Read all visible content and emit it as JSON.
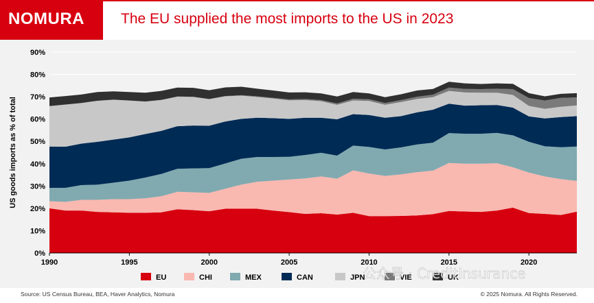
{
  "header": {
    "logo": "NOMURA",
    "title": "The EU supplied the most imports to the US in 2023"
  },
  "footer": {
    "source": "Source: US Census Bureau, BEA, Haver Analytics, Nomura",
    "copyright": "© 2025 Nomura. All Rights Reserved."
  },
  "watermark": "公众号 · CreditInsurance",
  "colors": {
    "brand": "#d7000f",
    "EU": "#d7000f",
    "CHI": "#f9b8b0",
    "MEX": "#80aab0",
    "CAN": "#002b55",
    "JPN": "#c8c8c8",
    "VIE": "#7a7a7a",
    "UK": "#303030"
  },
  "chart_data": {
    "type": "area",
    "stacked": true,
    "ylabel": "US goods imports as % of total",
    "xlabel": "",
    "xlim": [
      1990,
      2023
    ],
    "ylim": [
      0,
      90
    ],
    "yticks": [
      "0%",
      "10%",
      "20%",
      "30%",
      "40%",
      "50%",
      "60%",
      "70%",
      "80%",
      "90%"
    ],
    "xticks": [
      "1990",
      "1995",
      "2000",
      "2005",
      "2010",
      "2015",
      "2020"
    ],
    "grid": "horizontal",
    "legend": "bottom",
    "x": [
      1990,
      1991,
      1992,
      1993,
      1994,
      1995,
      1996,
      1997,
      1998,
      1999,
      2000,
      2001,
      2002,
      2003,
      2004,
      2005,
      2006,
      2007,
      2008,
      2009,
      2010,
      2011,
      2012,
      2013,
      2014,
      2015,
      2016,
      2017,
      2018,
      2019,
      2020,
      2021,
      2022,
      2023
    ],
    "series": [
      {
        "name": "EU",
        "values": [
          20.0,
          19.0,
          19.0,
          18.4,
          18.2,
          18.0,
          18.0,
          18.2,
          19.6,
          19.2,
          18.7,
          19.8,
          19.8,
          19.8,
          19.0,
          18.3,
          17.5,
          17.8,
          17.2,
          18.0,
          16.5,
          16.5,
          16.6,
          16.8,
          17.4,
          18.8,
          18.6,
          18.4,
          19.0,
          20.3,
          17.9,
          17.5,
          17.0,
          18.5
        ]
      },
      {
        "name": "CHI",
        "values": [
          3.2,
          3.9,
          4.8,
          5.4,
          5.9,
          6.1,
          6.5,
          7.2,
          7.8,
          8.0,
          8.2,
          9.0,
          10.8,
          12.1,
          13.4,
          14.6,
          15.9,
          16.5,
          16.1,
          19.0,
          19.1,
          18.0,
          18.6,
          19.4,
          19.5,
          21.5,
          21.4,
          21.6,
          21.2,
          18.1,
          18.1,
          16.8,
          16.1,
          13.8
        ]
      },
      {
        "name": "MEX",
        "values": [
          6.0,
          6.3,
          6.6,
          6.8,
          7.4,
          8.3,
          9.3,
          10.0,
          10.3,
          10.7,
          11.1,
          11.3,
          11.6,
          11.1,
          10.6,
          10.2,
          10.5,
          10.6,
          10.3,
          11.1,
          11.9,
          11.9,
          12.1,
          12.4,
          12.5,
          13.4,
          13.4,
          13.4,
          13.6,
          14.3,
          13.8,
          13.5,
          14.3,
          15.4
        ]
      },
      {
        "name": "CAN",
        "values": [
          18.5,
          18.4,
          18.6,
          19.2,
          19.3,
          19.4,
          19.5,
          19.3,
          19.1,
          19.2,
          19.0,
          18.8,
          17.9,
          17.6,
          17.4,
          17.0,
          16.7,
          15.7,
          16.3,
          14.1,
          14.3,
          14.2,
          14.0,
          14.4,
          14.8,
          13.2,
          12.6,
          12.8,
          12.5,
          12.4,
          11.4,
          12.5,
          13.5,
          13.6
        ]
      },
      {
        "name": "JPN",
        "values": [
          18.1,
          18.9,
          18.2,
          18.4,
          17.9,
          16.5,
          14.5,
          13.8,
          13.2,
          12.8,
          11.9,
          11.3,
          10.4,
          9.3,
          8.8,
          8.3,
          7.9,
          7.4,
          6.5,
          6.1,
          6.3,
          5.8,
          6.3,
          6.0,
          5.6,
          5.7,
          5.9,
          5.6,
          5.5,
          5.7,
          4.7,
          4.3,
          4.6,
          4.8
        ]
      },
      {
        "name": "VIE",
        "values": [
          0.0,
          0.0,
          0.0,
          0.0,
          0.0,
          0.0,
          0.1,
          0.1,
          0.1,
          0.1,
          0.1,
          0.1,
          0.2,
          0.3,
          0.3,
          0.4,
          0.5,
          0.5,
          0.6,
          0.8,
          0.8,
          0.8,
          0.9,
          1.0,
          1.1,
          1.5,
          1.6,
          1.6,
          1.8,
          2.6,
          3.5,
          3.7,
          4.0,
          3.6
        ]
      },
      {
        "name": "UK",
        "values": [
          3.9,
          3.8,
          3.8,
          3.9,
          3.7,
          3.8,
          3.9,
          4.0,
          4.0,
          4.0,
          3.9,
          3.9,
          3.8,
          3.4,
          3.3,
          3.1,
          3.0,
          3.0,
          3.1,
          3.0,
          2.6,
          2.6,
          2.6,
          2.8,
          2.6,
          2.6,
          2.5,
          2.3,
          2.4,
          2.4,
          2.2,
          1.9,
          1.8,
          1.9
        ]
      }
    ]
  }
}
